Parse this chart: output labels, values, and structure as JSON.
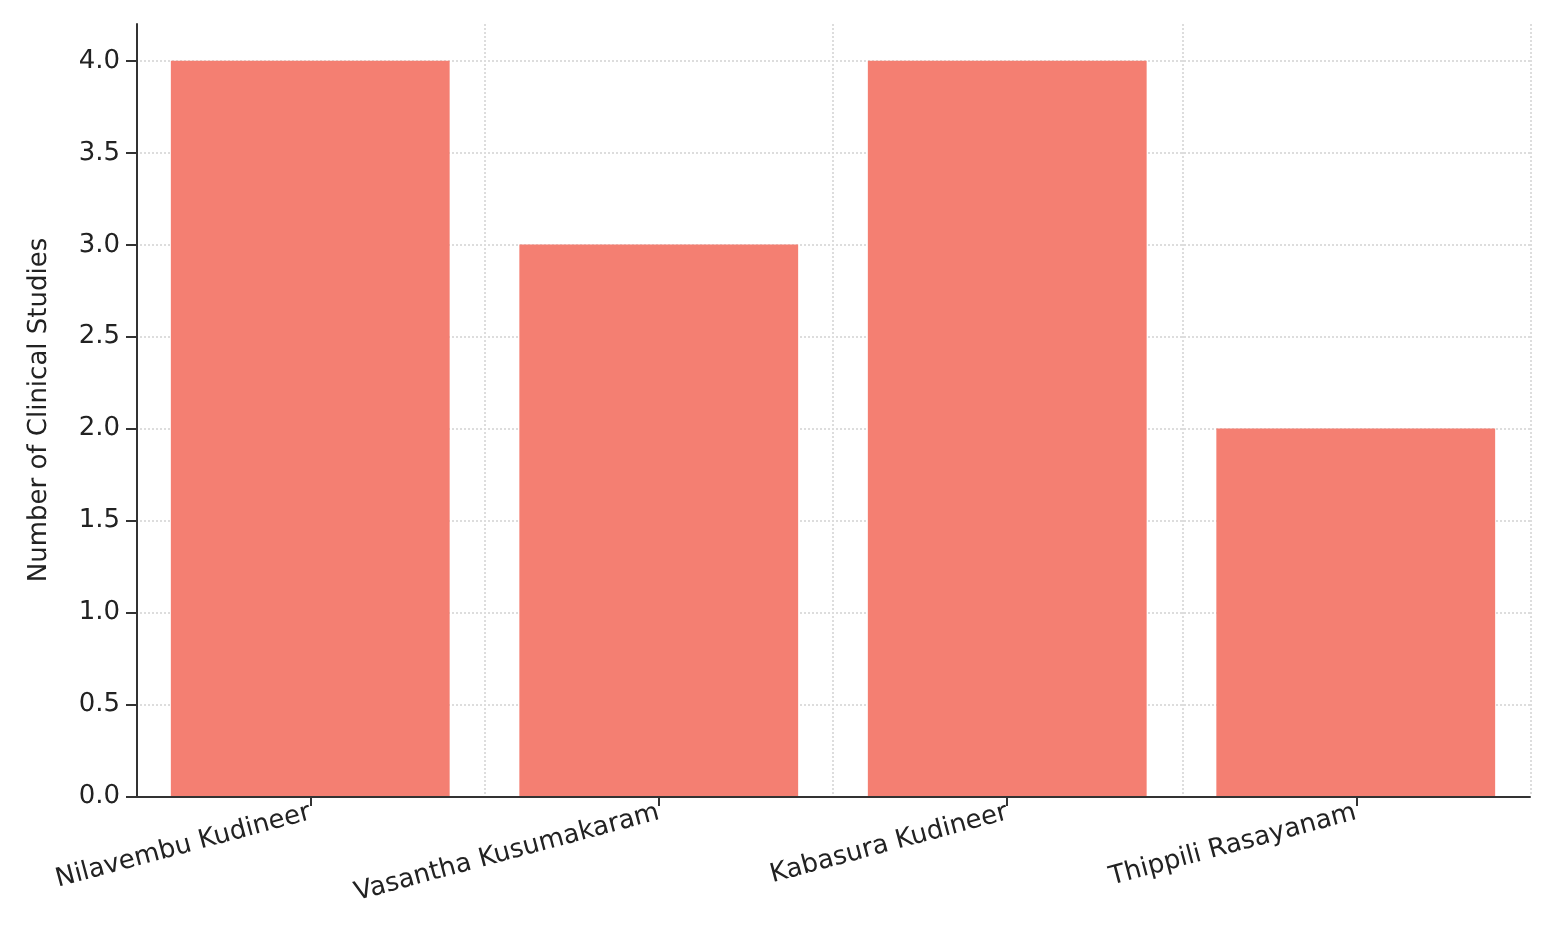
{
  "chart_data": {
    "type": "bar",
    "ylabel": "Number of Clinical Studies",
    "categories": [
      "Nilavembu Kudineer",
      "Vasantha Kusumakaram",
      "Kabasura Kudineer",
      "Thippili Rasayanam"
    ],
    "values": [
      4,
      3,
      4,
      2
    ],
    "color": "#f47f72",
    "ylim": [
      0,
      4.2
    ],
    "yticks": [
      {
        "value": 0,
        "label": "0.0"
      },
      {
        "value": 0.5,
        "label": "0.5"
      },
      {
        "value": 1,
        "label": "1.0"
      },
      {
        "value": 1.5,
        "label": "1.5"
      },
      {
        "value": 2,
        "label": "2.0"
      },
      {
        "value": 2.5,
        "label": "2.5"
      },
      {
        "value": 3,
        "label": "3.0"
      },
      {
        "value": 3.5,
        "label": "3.5"
      },
      {
        "value": 4,
        "label": "4.0"
      }
    ],
    "grid": true
  }
}
